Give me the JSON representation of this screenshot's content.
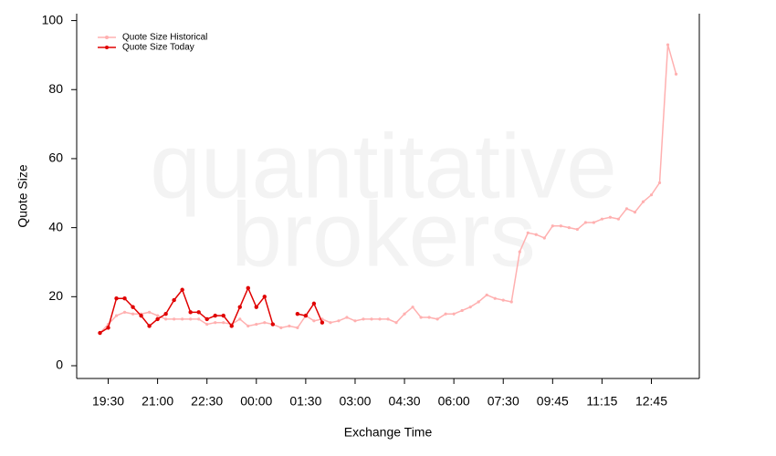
{
  "chart_data": {
    "type": "line",
    "x_label": "Exchange Time",
    "y_label": "Quote Size",
    "watermark": [
      "quantitative",
      "brokers"
    ],
    "categories": [
      null,
      "19:30",
      null,
      null,
      null,
      null,
      null,
      "21:00",
      null,
      null,
      null,
      null,
      null,
      "22:30",
      null,
      null,
      null,
      null,
      null,
      "00:00",
      null,
      null,
      null,
      null,
      null,
      "01:30",
      null,
      null,
      null,
      null,
      null,
      "03:00",
      null,
      null,
      null,
      null,
      null,
      "04:30",
      null,
      null,
      null,
      null,
      null,
      "06:00",
      null,
      null,
      null,
      null,
      null,
      "07:30",
      null,
      null,
      null,
      null,
      null,
      "09:45",
      null,
      null,
      null,
      null,
      null,
      "11:15",
      null,
      null,
      null,
      null,
      null,
      "12:45",
      null,
      null,
      null
    ],
    "series": [
      {
        "name": "Quote Size Historical",
        "color": "#ffb0b0",
        "values": [
          9.5,
          12,
          14.5,
          15.5,
          15,
          15,
          15.5,
          14.5,
          13.5,
          13.5,
          13.5,
          13.5,
          13.5,
          12,
          12.5,
          12.5,
          12,
          13.5,
          11.5,
          12,
          12.5,
          12,
          11,
          11.5,
          11,
          14.5,
          13,
          13.5,
          12.5,
          13,
          14,
          13,
          13.5,
          13.5,
          13.5,
          13.5,
          12.5,
          15,
          17,
          14,
          14,
          13.5,
          15,
          15,
          16,
          17,
          18.5,
          20.5,
          19.5,
          19,
          18.5,
          33,
          38.5,
          38,
          37,
          40.5,
          40.5,
          40,
          39.5,
          41.5,
          41.5,
          42.5,
          43,
          42.5,
          45.5,
          44.5,
          47.5,
          49.5,
          53,
          93,
          84.5
        ]
      },
      {
        "name": "Quote Size Today",
        "color": "#e00000",
        "values": [
          9.5,
          11,
          19.5,
          19.5,
          17,
          14.5,
          11.5,
          13.5,
          15,
          19,
          22,
          15.5,
          15.5,
          13.5,
          14.5,
          14.5,
          11.5,
          17,
          22.5,
          17,
          20,
          12,
          null,
          null,
          15,
          14.5,
          18,
          12.5,
          null,
          null,
          null,
          null,
          null,
          null,
          null,
          null,
          null,
          null,
          null,
          null,
          null,
          null,
          null,
          null,
          null,
          null,
          null,
          null,
          null,
          null,
          null,
          null,
          null,
          null,
          null,
          null,
          null,
          null,
          null,
          null,
          null,
          null,
          null,
          null,
          null,
          null,
          null,
          null,
          null,
          null,
          null
        ]
      }
    ],
    "ylim": [
      -3.7,
      102
    ],
    "yticks": [
      0,
      20,
      40,
      60,
      80,
      100
    ],
    "legend": "top-left"
  }
}
